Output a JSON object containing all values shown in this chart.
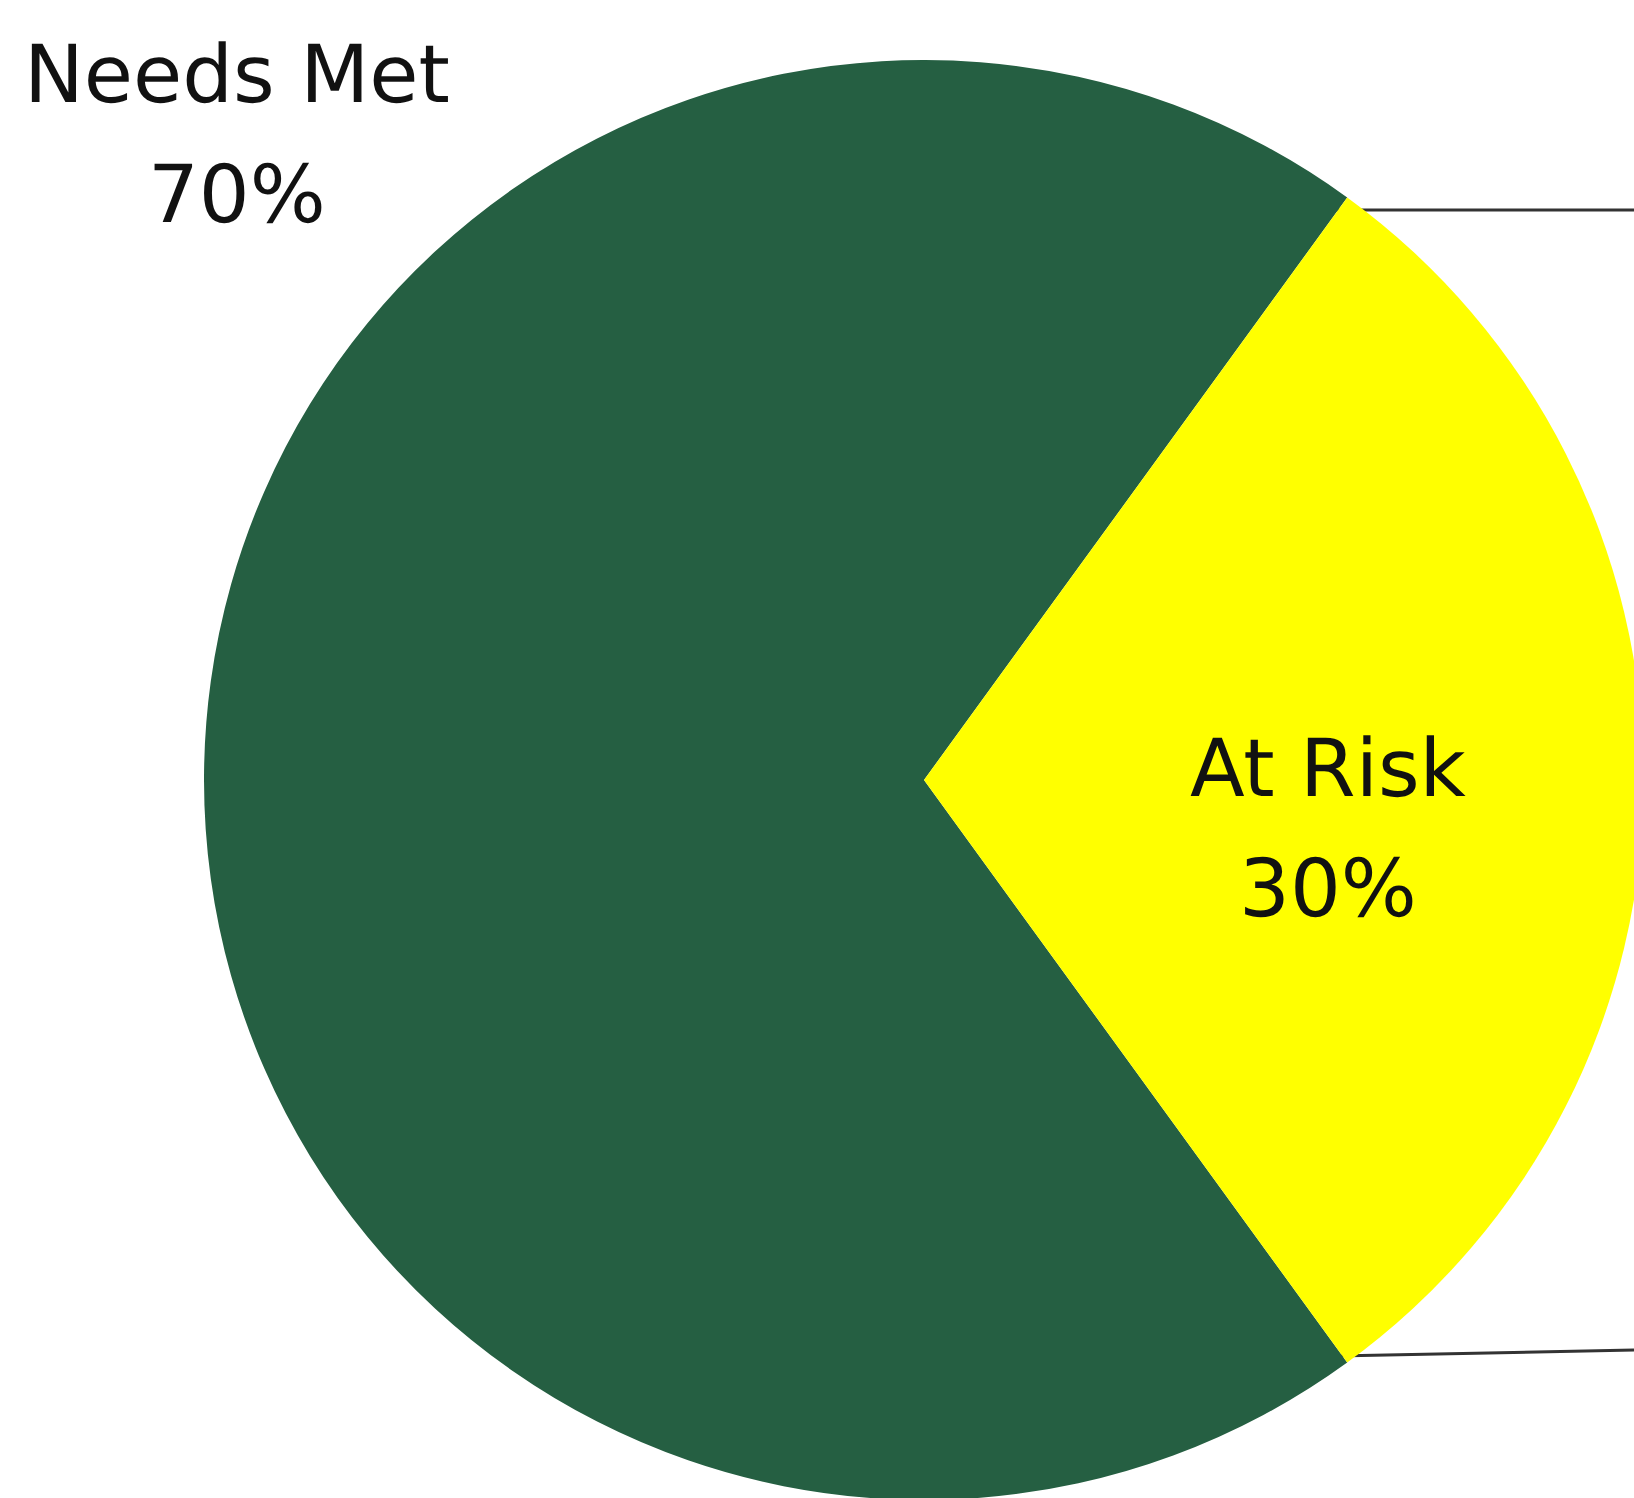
{
  "chart_data": {
    "type": "pie",
    "categories": [
      "Needs Met",
      "At Risk"
    ],
    "values": [
      70,
      30
    ],
    "colors": [
      "#255f42",
      "#ffff00"
    ],
    "value_labels": [
      "70%",
      "30%"
    ]
  }
}
